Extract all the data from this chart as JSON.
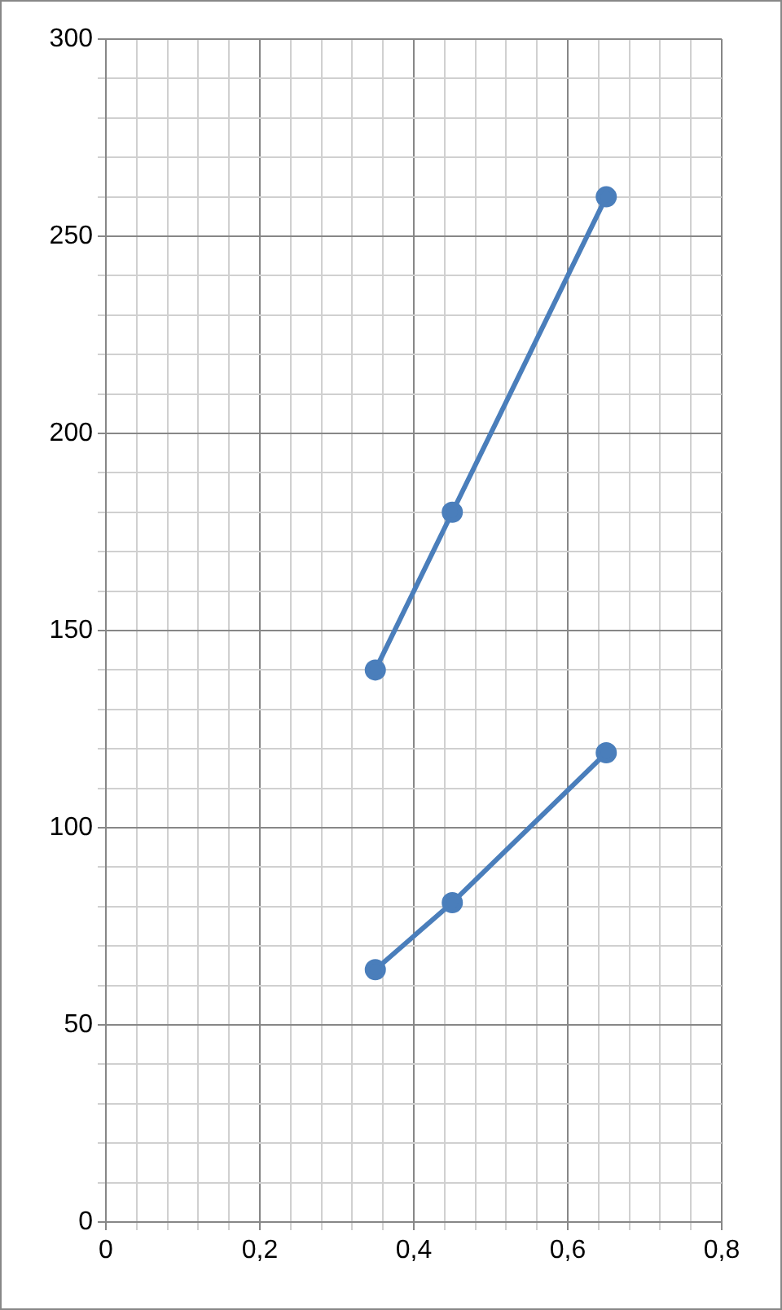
{
  "chart_data": {
    "type": "line",
    "x": [
      0.35,
      0.45,
      0.65
    ],
    "series": [
      {
        "color": "#4a7ebb",
        "values": [
          140,
          180,
          260
        ]
      },
      {
        "color": "#4a7ebb",
        "values": [
          64,
          81,
          119
        ]
      }
    ],
    "xlim": [
      0,
      0.8
    ],
    "ylim": [
      0,
      300
    ],
    "xticks": [
      0,
      {
        "value": 0.04,
        "label": null
      },
      {
        "value": 0.08,
        "label": null
      },
      {
        "value": 0.12,
        "label": null
      },
      {
        "value": 0.16,
        "label": null
      },
      {
        "value": 0.2,
        "label": "0,2"
      },
      {
        "value": 0.24,
        "label": null
      },
      {
        "value": 0.28,
        "label": null
      },
      {
        "value": 0.32,
        "label": null
      },
      {
        "value": 0.36,
        "label": null
      },
      {
        "value": 0.4,
        "label": "0,4"
      },
      {
        "value": 0.44,
        "label": null
      },
      {
        "value": 0.48,
        "label": null
      },
      {
        "value": 0.52,
        "label": null
      },
      {
        "value": 0.56,
        "label": null
      },
      {
        "value": 0.6,
        "label": "0,6"
      },
      {
        "value": 0.64,
        "label": null
      },
      {
        "value": 0.68,
        "label": null
      },
      {
        "value": 0.72,
        "label": null
      },
      {
        "value": 0.76,
        "label": null
      },
      {
        "value": 0.8,
        "label": "0,8"
      }
    ],
    "yticks": [
      0,
      {
        "value": 10,
        "label": null
      },
      {
        "value": 20,
        "label": null
      },
      {
        "value": 30,
        "label": null
      },
      {
        "value": 40,
        "label": null
      },
      50,
      {
        "value": 60,
        "label": null
      },
      {
        "value": 70,
        "label": null
      },
      {
        "value": 80,
        "label": null
      },
      {
        "value": 90,
        "label": null
      },
      100,
      {
        "value": 110,
        "label": null
      },
      {
        "value": 120,
        "label": null
      },
      {
        "value": 130,
        "label": null
      },
      {
        "value": 140,
        "label": null
      },
      150,
      {
        "value": 160,
        "label": null
      },
      {
        "value": 170,
        "label": null
      },
      {
        "value": 180,
        "label": null
      },
      {
        "value": 190,
        "label": null
      },
      200,
      {
        "value": 210,
        "label": null
      },
      {
        "value": 220,
        "label": null
      },
      {
        "value": 230,
        "label": null
      },
      {
        "value": 240,
        "label": null
      },
      250,
      {
        "value": 260,
        "label": null
      },
      {
        "value": 270,
        "label": null
      },
      {
        "value": 280,
        "label": null
      },
      {
        "value": 290,
        "label": null
      },
      300
    ],
    "grid": true,
    "marker": "circle",
    "line_style": "solid",
    "legend": false
  }
}
